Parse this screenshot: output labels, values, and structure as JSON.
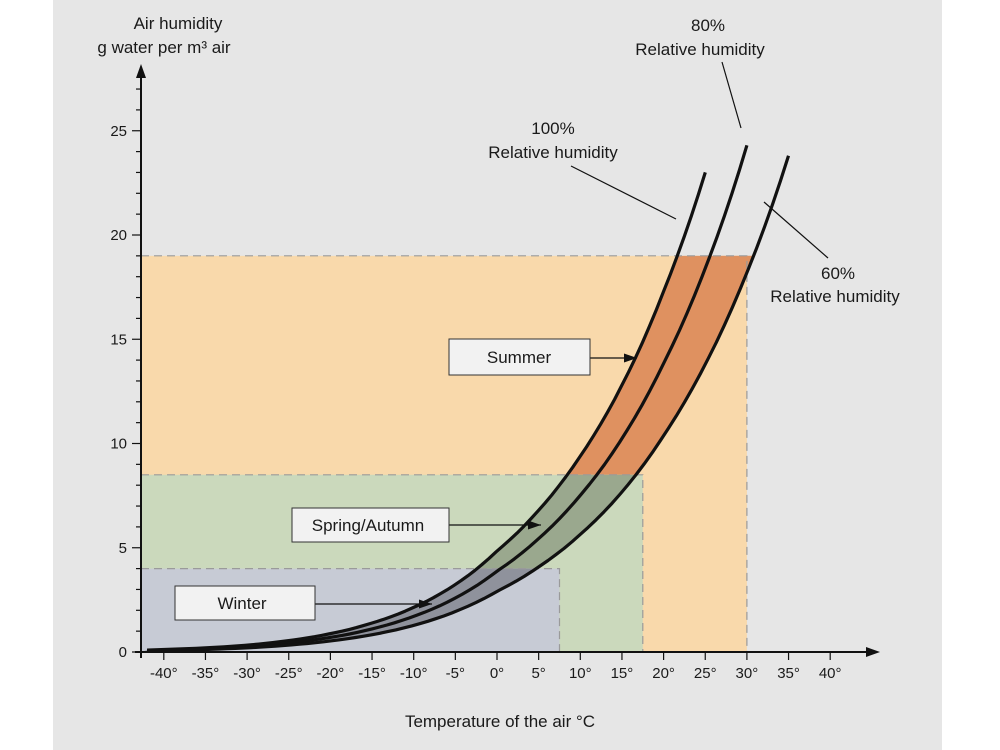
{
  "chart_data": {
    "type": "line",
    "title": "",
    "ylabel_line1": "Air humidity",
    "ylabel_line2": "g water per m³ air",
    "xlabel": "Temperature of the air °C",
    "x_ticks": [
      -40,
      -35,
      -30,
      -25,
      -20,
      -15,
      -10,
      -5,
      0,
      5,
      10,
      15,
      20,
      25,
      30,
      35,
      40
    ],
    "x_tick_labels": [
      "-40°",
      "-35°",
      "-30°",
      "-25°",
      "-20°",
      "-15°",
      "-10°",
      "-5°",
      "0°",
      "5°",
      "10°",
      "15°",
      "20°",
      "25°",
      "30°",
      "35°",
      "40°"
    ],
    "y_ticks": [
      0,
      5,
      10,
      15,
      20,
      25
    ],
    "y_tick_labels": [
      "0",
      "5",
      "10",
      "15",
      "20",
      "25"
    ],
    "xlim": [
      -42,
      45
    ],
    "ylim": [
      0,
      27
    ],
    "x": [
      -42,
      -40,
      -35,
      -30,
      -25,
      -20,
      -15,
      -10,
      -5,
      0,
      5,
      10,
      15,
      20,
      25,
      30,
      35
    ],
    "series": [
      {
        "name": "100% Relative humidity",
        "label_pct": "100%",
        "label_text": "Relative humidity",
        "values": [
          0.09,
          0.12,
          0.2,
          0.33,
          0.55,
          0.88,
          1.39,
          2.14,
          3.24,
          4.85,
          6.8,
          9.4,
          12.8,
          17.3,
          23.0,
          null,
          null
        ]
      },
      {
        "name": "80% Relative humidity",
        "label_pct": "80%",
        "label_text": "Relative humidity",
        "values": [
          0.07,
          0.1,
          0.16,
          0.26,
          0.44,
          0.7,
          1.11,
          1.71,
          2.59,
          3.88,
          5.44,
          7.52,
          10.24,
          13.84,
          18.4,
          24.3,
          null
        ]
      },
      {
        "name": "60% Relative humidity",
        "label_pct": "60%",
        "label_text": "Relative humidity",
        "values": [
          0.05,
          0.07,
          0.12,
          0.2,
          0.33,
          0.53,
          0.83,
          1.28,
          1.94,
          2.91,
          4.08,
          5.64,
          7.68,
          10.38,
          13.8,
          18.2,
          23.8
        ]
      }
    ],
    "regions": [
      {
        "name": "Summer",
        "x_max": 30,
        "y_max": 19,
        "fill": "#f9d9ab",
        "dark_fill": "#df9160"
      },
      {
        "name": "Spring/Autumn",
        "x_max": 17.5,
        "y_max": 8.5,
        "fill": "#cbd9bc",
        "dark_fill": "#9aa88e"
      },
      {
        "name": "Winter",
        "x_max": 7.5,
        "y_max": 4,
        "fill": "#c7cbd5",
        "dark_fill": "#8f929c"
      }
    ],
    "annotations": [
      {
        "text": "Summer",
        "points_to": "summer-band"
      },
      {
        "text": "Spring/Autumn",
        "points_to": "spring-autumn-band"
      },
      {
        "text": "Winter",
        "points_to": "winter-band"
      }
    ]
  }
}
